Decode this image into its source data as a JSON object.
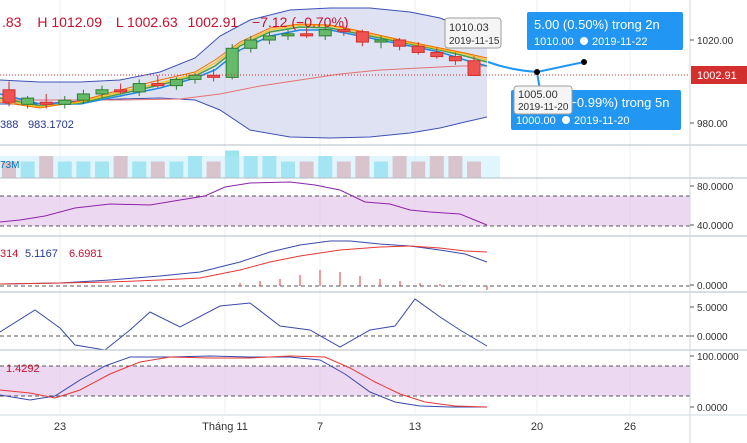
{
  "ohlc_header": {
    "open_partial": ".83",
    "high_label": "H",
    "high": "1012.09",
    "low_label": "L",
    "low": "1002.63",
    "close": "1002.91",
    "change": "−7.12 (−0.70%)"
  },
  "price_tag": "1002.91",
  "colors": {
    "bull": "#2e7d32",
    "bear": "#d32f2f",
    "band": "#c5cae9",
    "band_line": "#3f51b5",
    "callout": "#2196f3",
    "rsi_fill": "#e1bee7",
    "rsi_line": "#8e24aa"
  },
  "callouts": {
    "marker_top": {
      "value": "1010.03",
      "date": "2019-11-15"
    },
    "marker_bottom": {
      "value": "1005.00",
      "date": "2019-11-20"
    },
    "forecast_up": {
      "line1": "5.00 (0.50%) trong 2n",
      "value": "1010.00",
      "date": "2019-11-22"
    },
    "forecast_down": {
      "line1": "(−0.99%) trong 5n",
      "value": "1000.00",
      "date": "2019-11-20"
    }
  },
  "indicator_labels": {
    "band_values": [
      "388",
      "983.1702"
    ],
    "volume_partial": "73M",
    "macd_values": [
      "314",
      "5.1167",
      "6.6981"
    ],
    "stoch_value": "1.4292"
  },
  "chart_data": {
    "type": "candlestick",
    "x_ticks": [
      "23",
      "Tháng 11",
      "7",
      "13",
      "20",
      "26"
    ],
    "y_ticks_price": [
      "1020.00",
      "980.00"
    ],
    "y_ticks_rsi": [
      "80.0000",
      "40.0000"
    ],
    "y_ticks_macd": [
      "0.0000"
    ],
    "y_ticks_mom": [
      "5.0000",
      "0.0000"
    ],
    "y_ticks_stoch": [
      "100.0000",
      "0.0000"
    ],
    "ylim": [
      960,
      1030
    ],
    "candles": [
      {
        "o": 996,
        "h": 1000,
        "l": 988,
        "c": 990
      },
      {
        "o": 989,
        "h": 993,
        "l": 987,
        "c": 992
      },
      {
        "o": 990,
        "h": 994,
        "l": 987,
        "c": 989
      },
      {
        "o": 989,
        "h": 993,
        "l": 987,
        "c": 991
      },
      {
        "o": 991,
        "h": 996,
        "l": 989,
        "c": 994
      },
      {
        "o": 994,
        "h": 998,
        "l": 992,
        "c": 996
      },
      {
        "o": 996,
        "h": 999,
        "l": 994,
        "c": 995
      },
      {
        "o": 995,
        "h": 1001,
        "l": 993,
        "c": 999
      },
      {
        "o": 999,
        "h": 1003,
        "l": 997,
        "c": 998
      },
      {
        "o": 998,
        "h": 1002,
        "l": 996,
        "c": 1001
      },
      {
        "o": 1001,
        "h": 1004,
        "l": 999,
        "c": 1003
      },
      {
        "o": 1003,
        "h": 1006,
        "l": 1000,
        "c": 1002
      },
      {
        "o": 1002,
        "h": 1018,
        "l": 1001,
        "c": 1016
      },
      {
        "o": 1016,
        "h": 1022,
        "l": 1014,
        "c": 1020
      },
      {
        "o": 1020,
        "h": 1024,
        "l": 1018,
        "c": 1022
      },
      {
        "o": 1022,
        "h": 1025,
        "l": 1020,
        "c": 1023
      },
      {
        "o": 1023,
        "h": 1026,
        "l": 1021,
        "c": 1022
      },
      {
        "o": 1022,
        "h": 1027,
        "l": 1020,
        "c": 1025
      },
      {
        "o": 1025,
        "h": 1027,
        "l": 1022,
        "c": 1024
      },
      {
        "o": 1024,
        "h": 1025,
        "l": 1017,
        "c": 1019
      },
      {
        "o": 1019,
        "h": 1022,
        "l": 1016,
        "c": 1020
      },
      {
        "o": 1020,
        "h": 1021,
        "l": 1015,
        "c": 1017
      },
      {
        "o": 1017,
        "h": 1019,
        "l": 1013,
        "c": 1014
      },
      {
        "o": 1014,
        "h": 1016,
        "l": 1011,
        "c": 1012
      },
      {
        "o": 1012,
        "h": 1014,
        "l": 1008,
        "c": 1010
      },
      {
        "o": 1010,
        "h": 1012.09,
        "l": 1002.63,
        "c": 1002.91
      }
    ],
    "volume": [
      3,
      3,
      4,
      3,
      3,
      3,
      4,
      3,
      3,
      3,
      4,
      3,
      5,
      4,
      4,
      3,
      3,
      4,
      3,
      4,
      3,
      4,
      3,
      4,
      4,
      3
    ]
  }
}
